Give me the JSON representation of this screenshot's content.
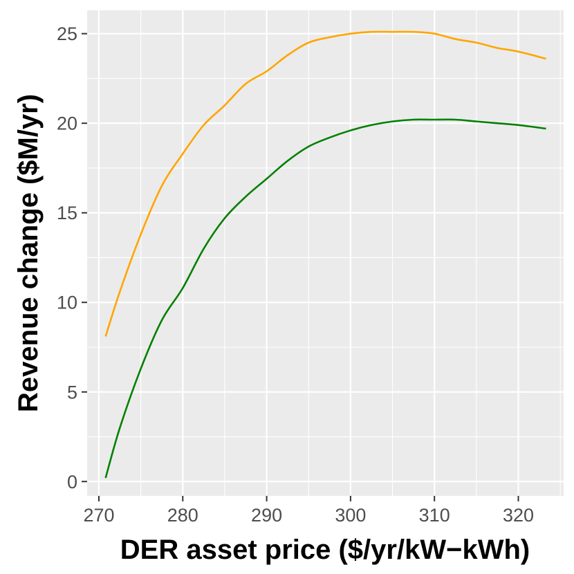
{
  "chart_data": {
    "type": "line",
    "title": "",
    "xlabel": "DER asset price ($/yr/kW−kWh)",
    "ylabel": "Revenue change ($M/yr)",
    "xlim": [
      268.6,
      325.4
    ],
    "ylim": [
      -0.8,
      26.3
    ],
    "x_ticks": [
      270,
      280,
      290,
      300,
      310,
      320
    ],
    "y_ticks": [
      0,
      5,
      10,
      15,
      20,
      25
    ],
    "x_tick_labels": [
      "270",
      "280",
      "290",
      "300",
      "310",
      "320"
    ],
    "y_tick_labels": [
      "0",
      "5",
      "10",
      "15",
      "20",
      "25"
    ],
    "grid": true,
    "legend": "none",
    "series": [
      {
        "color": "#FFA500",
        "x": [
          270.8,
          272.5,
          275,
          277.5,
          280,
          282.5,
          285,
          287.5,
          290,
          292.5,
          295,
          297.5,
          300,
          302.5,
          305,
          307.5,
          310,
          312.5,
          315,
          317.5,
          320,
          323.3
        ],
        "y": [
          8.1,
          10.6,
          13.8,
          16.5,
          18.3,
          19.9,
          21.0,
          22.2,
          22.9,
          23.8,
          24.5,
          24.8,
          25.0,
          25.1,
          25.1,
          25.1,
          25.0,
          24.7,
          24.5,
          24.2,
          24.0,
          23.6
        ]
      },
      {
        "color": "#008000",
        "x": [
          270.8,
          272.5,
          275,
          277.5,
          280,
          282.5,
          285,
          287.5,
          290,
          292.5,
          295,
          297.5,
          300,
          302.5,
          305,
          307.5,
          310,
          312.5,
          315,
          317.5,
          320,
          323.3
        ],
        "y": [
          0.2,
          3.0,
          6.3,
          9.0,
          10.8,
          13.0,
          14.7,
          15.9,
          16.9,
          17.9,
          18.7,
          19.2,
          19.6,
          19.9,
          20.1,
          20.2,
          20.2,
          20.2,
          20.1,
          20.0,
          19.9,
          19.7
        ]
      }
    ]
  }
}
